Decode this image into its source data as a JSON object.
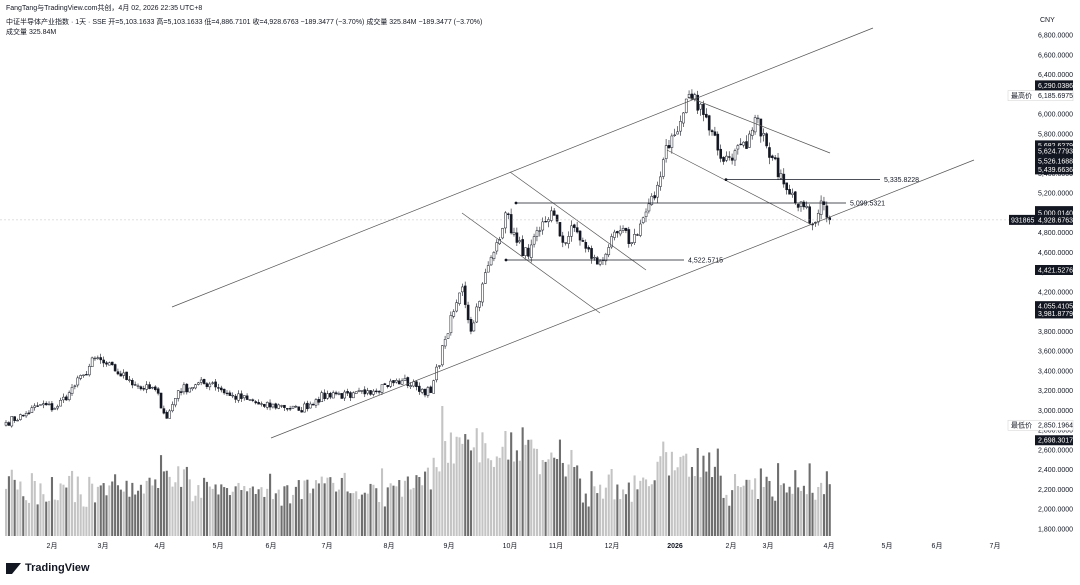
{
  "header": {
    "credit": "FangTang与TradingView.com共创，4月 02, 2026 22:35 UTC+8",
    "symbol_line": "中证半导体产业指数 · 1天 · SSE  开=5,103.1633  高=5,103.1633  低=4,886.7101  收=4,928.6763  −189.3477 (−3.70%)  成交量 325.84M  −189.3477 (−3.70%)",
    "volume_label": "成交量  325.84M",
    "currency": "CNY"
  },
  "footer": {
    "brand": "TradingView"
  },
  "colors": {
    "up": "#ffffff",
    "down": "#131722",
    "vol_up": "#c4c4c4",
    "vol_down": "#6e6e6e",
    "trend": "#555555",
    "tag_bg": "#131722"
  },
  "chart_data": {
    "type": "candlestick",
    "ylim": [
      1700,
      6900
    ],
    "price_ticks": [
      "6,800.0000",
      "6,600.0000",
      "6,400.0000",
      "6,200.0000",
      "6,000.0000",
      "5,800.0000",
      "5,600.0000",
      "5,400.0000",
      "5,200.0000",
      "5,000.0000",
      "4,800.0000",
      "4,600.0000",
      "4,400.0000",
      "4,200.0000",
      "4,000.0000",
      "3,800.0000",
      "3,600.0000",
      "3,400.0000",
      "3,200.0000",
      "3,000.0000",
      "2,800.0000",
      "2,600.0000",
      "2,400.0000",
      "2,200.0000",
      "2,000.0000",
      "1,800.0000"
    ],
    "months": [
      "2月",
      "3月",
      "4月",
      "5月",
      "6月",
      "7月",
      "8月",
      "9月",
      "10月",
      "11月",
      "12月",
      "2026",
      "2月",
      "3月",
      "4月",
      "5月",
      "6月",
      "7月"
    ],
    "price_tags": [
      {
        "text": "6,290.0386",
        "value": 6290.0386,
        "style": "dark"
      },
      {
        "text": "6,185.6975",
        "value": 6185.6975,
        "style": "light",
        "prefix": "最高价"
      },
      {
        "text": "5,682.6279",
        "value": 5682.6279,
        "style": "dark"
      },
      {
        "text": "5,624.7793",
        "value": 5624.7793,
        "style": "dark"
      },
      {
        "text": "5,526.1688",
        "value": 5526.1688,
        "style": "dark"
      },
      {
        "text": "5,439.6636",
        "value": 5439.6636,
        "style": "dark"
      },
      {
        "text": "5,017.3685",
        "value": 5017.3685,
        "style": "dark"
      },
      {
        "text": "5,000.0140",
        "value": 5000.014,
        "style": "dark"
      },
      {
        "text": "4,928.6763",
        "value": 4928.6763,
        "style": "dark"
      },
      {
        "text": "4,421.5276",
        "value": 4421.5276,
        "style": "dark"
      },
      {
        "text": "4,055.4105",
        "value": 4055.4105,
        "style": "dark"
      },
      {
        "text": "3,981.8779",
        "value": 3981.8779,
        "style": "dark"
      },
      {
        "text": "2,850.1964",
        "value": 2850.1964,
        "style": "light",
        "prefix": "最低价"
      },
      {
        "text": "2,698.3017",
        "value": 2698.3017,
        "style": "dark"
      }
    ],
    "crosshair_tag": "931865",
    "annotations": [
      {
        "text": "5,335.8228",
        "value": 5335.8228
      },
      {
        "text": "5,099.5321",
        "value": 5099.5321
      },
      {
        "text": "4,522.5715",
        "value": 4522.5715
      }
    ],
    "anchors": [
      [
        0,
        2880
      ],
      [
        6,
        2950
      ],
      [
        12,
        3060
      ],
      [
        17,
        3020
      ],
      [
        22,
        3180
      ],
      [
        27,
        3360
      ],
      [
        31,
        3530
      ],
      [
        34,
        3480
      ],
      [
        38,
        3400
      ],
      [
        43,
        3310
      ],
      [
        48,
        3220
      ],
      [
        52,
        3210
      ],
      [
        56,
        2920
      ],
      [
        60,
        3200
      ],
      [
        66,
        3260
      ],
      [
        72,
        3280
      ],
      [
        78,
        3150
      ],
      [
        84,
        3110
      ],
      [
        90,
        3040
      ],
      [
        96,
        3050
      ],
      [
        102,
        3000
      ],
      [
        108,
        3110
      ],
      [
        114,
        3180
      ],
      [
        120,
        3130
      ],
      [
        126,
        3200
      ],
      [
        132,
        3260
      ],
      [
        138,
        3300
      ],
      [
        143,
        3240
      ],
      [
        148,
        3180
      ],
      [
        153,
        3720
      ],
      [
        156,
        4000
      ],
      [
        159,
        4250
      ],
      [
        162,
        3800
      ],
      [
        166,
        4280
      ],
      [
        170,
        4600
      ],
      [
        174,
        5000
      ],
      [
        178,
        4700
      ],
      [
        182,
        4560
      ],
      [
        186,
        4820
      ],
      [
        190,
        5020
      ],
      [
        194,
        4700
      ],
      [
        198,
        4850
      ],
      [
        202,
        4640
      ],
      [
        206,
        4480
      ],
      [
        210,
        4650
      ],
      [
        214,
        4820
      ],
      [
        218,
        4700
      ],
      [
        222,
        4950
      ],
      [
        226,
        5150
      ],
      [
        230,
        5680
      ],
      [
        234,
        5820
      ],
      [
        238,
        6200
      ],
      [
        242,
        6100
      ],
      [
        246,
        5820
      ],
      [
        250,
        5520
      ],
      [
        254,
        5630
      ],
      [
        258,
        5650
      ],
      [
        262,
        5960
      ],
      [
        266,
        5560
      ],
      [
        270,
        5400
      ],
      [
        274,
        5200
      ],
      [
        278,
        5060
      ],
      [
        281,
        4880
      ],
      [
        284,
        5120
      ],
      [
        287,
        4929
      ]
    ],
    "volume_ylim": [
      0,
      1000
    ]
  }
}
